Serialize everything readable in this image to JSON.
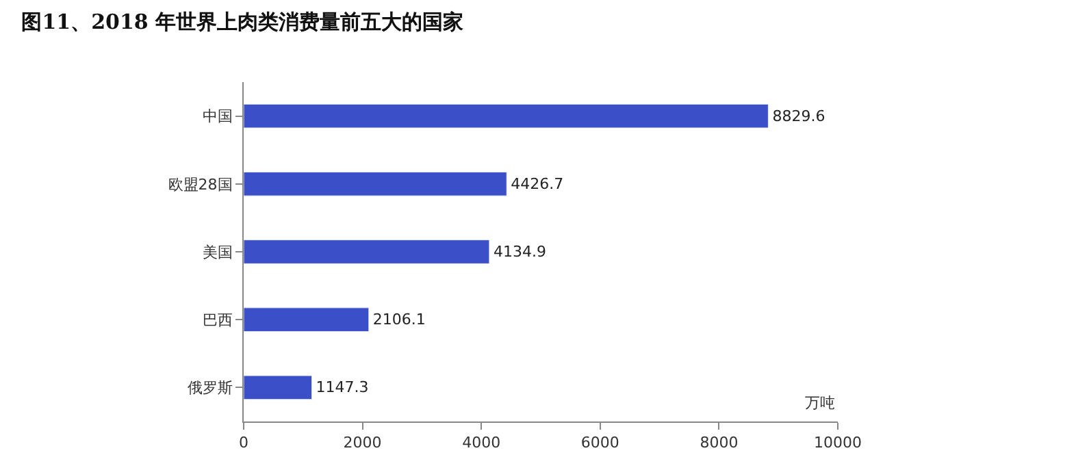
{
  "chart_data": {
    "type": "bar",
    "orientation": "horizontal",
    "title": "图11、2018 年世界上肉类消费量前五大的国家",
    "categories": [
      "中国",
      "欧盟28国",
      "美国",
      "巴西",
      "俄罗斯"
    ],
    "values": [
      8829.6,
      4426.7,
      4134.9,
      2106.1,
      1147.3
    ],
    "color": "#3a4fc8",
    "xlim": [
      0,
      10000
    ],
    "xticks": [
      0,
      2000,
      4000,
      6000,
      8000,
      10000
    ],
    "data_labels": true,
    "annotations": [
      "万吨"
    ]
  }
}
